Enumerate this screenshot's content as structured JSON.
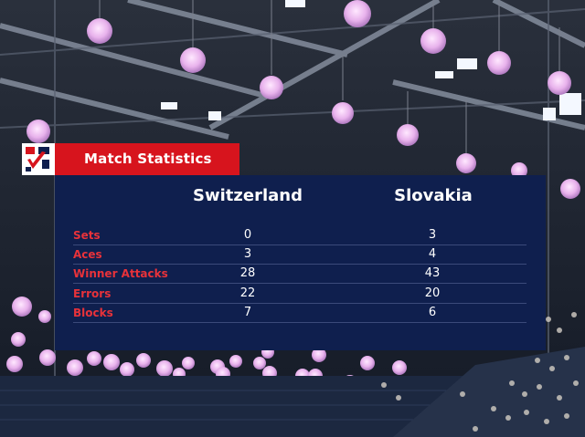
{
  "header": {
    "title": "Match Statistics"
  },
  "teams": {
    "home": "Switzerland",
    "away": "Slovakia"
  },
  "stats": [
    {
      "label": "Sets",
      "home": "0",
      "away": "3"
    },
    {
      "label": "Aces",
      "home": "3",
      "away": "4"
    },
    {
      "label": "Winner Attacks",
      "home": "28",
      "away": "43"
    },
    {
      "label": "Errors",
      "home": "22",
      "away": "20"
    },
    {
      "label": "Blocks",
      "home": "7",
      "away": "6"
    }
  ],
  "colors": {
    "panel": "#0f1f4e",
    "accent": "#d7141d",
    "stat_label": "#e8323a",
    "text": "#ffffff"
  },
  "icons": {
    "logo": "tournament-logo-icon"
  }
}
